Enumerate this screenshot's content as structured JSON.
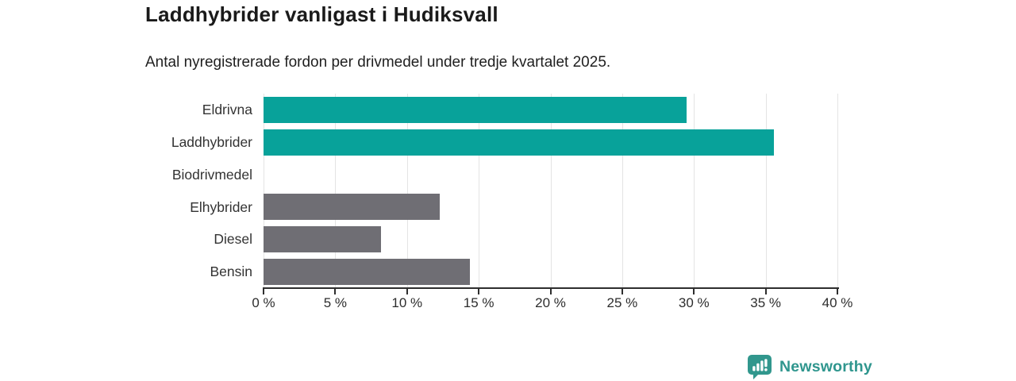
{
  "header": {
    "title": "Laddhybrider vanligast i Hudiksvall",
    "subtitle": "Antal nyregistrerade fordon per drivmedel under tredje kvartalet 2025."
  },
  "chart_data": {
    "type": "bar",
    "orientation": "horizontal",
    "title": "Laddhybrider vanligast i Hudiksvall",
    "subtitle": "Antal nyregistrerade fordon per drivmedel under tredje kvartalet 2025.",
    "categories": [
      "Eldrivna",
      "Laddhybrider",
      "Biodrivmedel",
      "Elhybrider",
      "Diesel",
      "Bensin"
    ],
    "values": [
      29.5,
      35.6,
      0,
      12.3,
      8.2,
      14.4
    ],
    "value_unit": "%",
    "bar_colors": [
      "#08a29a",
      "#08a29a",
      "#08a29a",
      "#6f6e74",
      "#6f6e74",
      "#6f6e74"
    ],
    "xlim": [
      0,
      40
    ],
    "xticks": [
      0,
      5,
      10,
      15,
      20,
      25,
      30,
      35,
      40
    ],
    "xtick_labels": [
      "0 %",
      "5 %",
      "10 %",
      "15 %",
      "20 %",
      "25 %",
      "30 %",
      "35 %",
      "40 %"
    ],
    "grid": true,
    "legend": false,
    "colors": {
      "highlight": "#08a29a",
      "muted": "#6f6e74",
      "gridline": "#e4e4e4",
      "axis": "#2e2e2e",
      "text": "#333333"
    }
  },
  "footer": {
    "brand": "Newsworthy",
    "logo_icon": "newsworthy-chart-bubble-icon",
    "brand_color": "#2f968e",
    "icon_color": "#31978d"
  }
}
